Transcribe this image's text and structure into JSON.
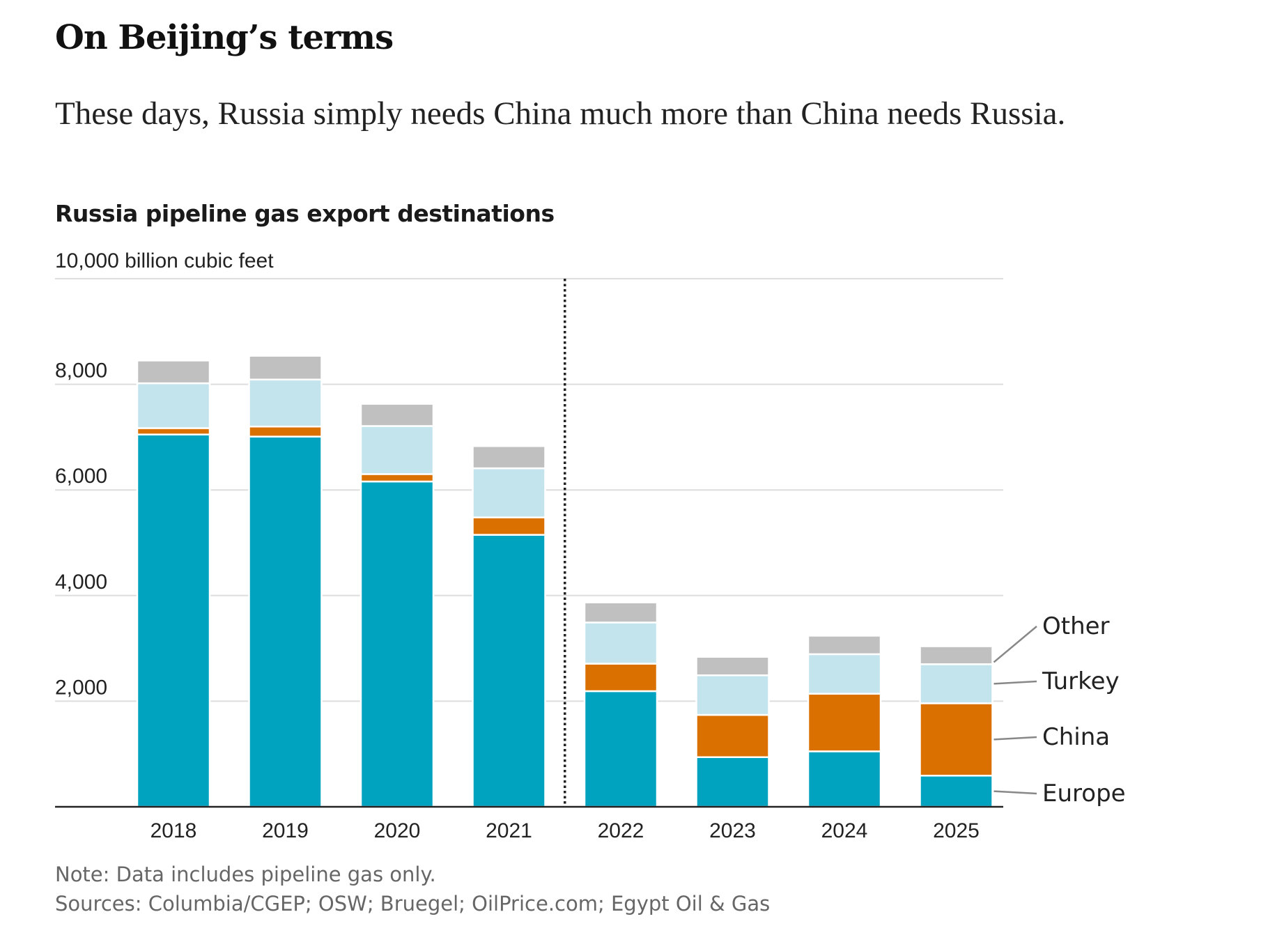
{
  "headline": "On Beijing’s terms",
  "dek": "These days, Russia simply needs China much more than China needs Russia.",
  "chart_data": {
    "type": "bar",
    "stacked": true,
    "title": "Russia pipeline gas export destinations",
    "unit_label": "10,000 billion cubic feet",
    "categories": [
      "2018",
      "2019",
      "2020",
      "2021",
      "2022",
      "2023",
      "2024",
      "2025"
    ],
    "series": [
      {
        "name": "Europe",
        "color": "#00a3bf",
        "values": [
          7050,
          7010,
          6160,
          5150,
          2190,
          940,
          1050,
          590
        ]
      },
      {
        "name": "China",
        "color": "#d97000",
        "values": [
          120,
          190,
          140,
          330,
          520,
          800,
          1090,
          1370
        ]
      },
      {
        "name": "Turkey",
        "color": "#c3e4ed",
        "values": [
          850,
          890,
          910,
          930,
          780,
          750,
          750,
          740
        ]
      },
      {
        "name": "Other",
        "color": "#c0c0c0",
        "values": [
          430,
          450,
          420,
          420,
          380,
          350,
          350,
          340
        ]
      }
    ],
    "ylim": [
      0,
      10000
    ],
    "yticks": [
      {
        "value": 2000,
        "label": "2,000"
      },
      {
        "value": 4000,
        "label": "4,000"
      },
      {
        "value": 6000,
        "label": "6,000"
      },
      {
        "value": 8000,
        "label": "8,000"
      }
    ],
    "divider_after_category": "2021",
    "legend_placement": "right, labels at the last bar",
    "grid": true
  },
  "note": "Note: Data includes pipeline gas only.",
  "sources": "Sources: Columbia/CGEP; OSW; Bruegel; OilPrice.com; Egypt Oil & Gas"
}
